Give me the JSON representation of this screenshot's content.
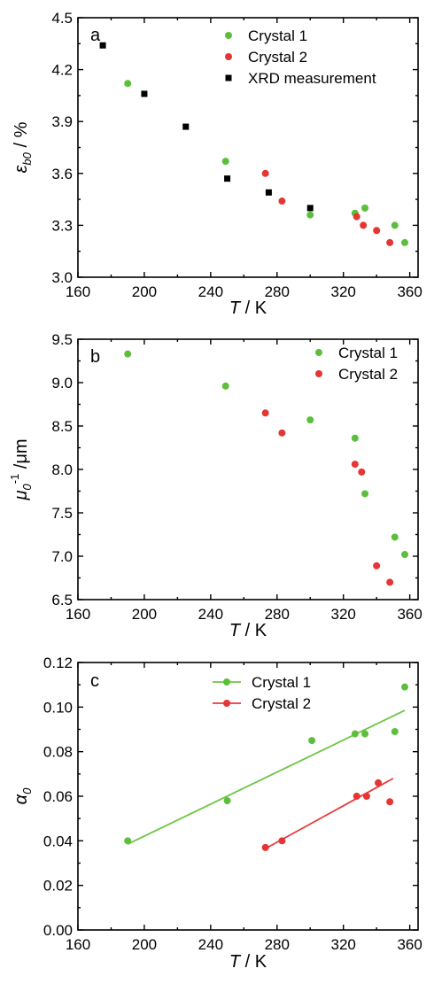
{
  "colors": {
    "crystal1": "#5cbf3c",
    "crystal2": "#e53535",
    "xrd": "#000000",
    "fit1": "#6cc644",
    "fit2": "#e83a3a"
  },
  "chart_data": [
    {
      "type": "scatter",
      "panel": "a",
      "xlabel_italic": "T",
      "xlabel_unit": " / K",
      "ylabel_symbol": "ε",
      "ylabel_sub": "b0",
      "ylabel_unit": " / %",
      "xlim": [
        160,
        365
      ],
      "ylim": [
        3.0,
        4.5
      ],
      "xticks": [
        "160",
        "200",
        "240",
        "280",
        "320",
        "360"
      ],
      "yticks": [
        "3.0",
        "3.3",
        "3.6",
        "3.9",
        "4.2",
        "4.5"
      ],
      "legend_position": "top-right",
      "series": [
        {
          "name": "Crystal 1",
          "marker": "circle",
          "color_key": "crystal1",
          "x": [
            190,
            249,
            300,
            327,
            333,
            351,
            357
          ],
          "y": [
            4.12,
            3.67,
            3.36,
            3.37,
            3.4,
            3.3,
            3.2
          ]
        },
        {
          "name": "Crystal 2",
          "marker": "circle",
          "color_key": "crystal2",
          "x": [
            273,
            283,
            328,
            332,
            340,
            348
          ],
          "y": [
            3.6,
            3.44,
            3.35,
            3.3,
            3.27,
            3.2
          ]
        },
        {
          "name": "XRD measurement",
          "marker": "square",
          "color_key": "xrd",
          "x": [
            175,
            200,
            225,
            250,
            275,
            300
          ],
          "y": [
            4.34,
            4.06,
            3.87,
            3.57,
            3.49,
            3.4
          ]
        }
      ]
    },
    {
      "type": "scatter",
      "panel": "b",
      "xlabel_italic": "T",
      "xlabel_unit": " / K",
      "ylabel_symbol": "μ",
      "ylabel_sub": "0",
      "ylabel_sup": "-1",
      "ylabel_unit": " /μm",
      "xlim": [
        160,
        365
      ],
      "ylim": [
        6.5,
        9.5
      ],
      "xticks": [
        "160",
        "200",
        "240",
        "280",
        "320",
        "360"
      ],
      "yticks": [
        "6.5",
        "7.0",
        "7.5",
        "8.0",
        "8.5",
        "9.0",
        "9.5"
      ],
      "legend_position": "top-right",
      "series": [
        {
          "name": "Crystal 1",
          "marker": "circle",
          "color_key": "crystal1",
          "x": [
            190,
            249,
            300,
            327,
            333,
            351,
            357
          ],
          "y": [
            9.33,
            8.96,
            8.57,
            8.36,
            7.72,
            7.22,
            7.02
          ]
        },
        {
          "name": "Crystal 2",
          "marker": "circle",
          "color_key": "crystal2",
          "x": [
            273,
            283,
            327,
            331,
            340,
            348
          ],
          "y": [
            8.65,
            8.42,
            8.06,
            7.97,
            6.89,
            6.7
          ]
        }
      ]
    },
    {
      "type": "scatter",
      "panel": "c",
      "xlabel_italic": "T",
      "xlabel_unit": " / K",
      "ylabel_symbol": "α",
      "ylabel_sub": "0",
      "xlim": [
        160,
        365
      ],
      "ylim": [
        0.0,
        0.12
      ],
      "xticks": [
        "160",
        "200",
        "240",
        "280",
        "320",
        "360"
      ],
      "yticks": [
        "0.00",
        "0.02",
        "0.04",
        "0.06",
        "0.08",
        "0.10",
        "0.12"
      ],
      "legend_position": "top-right",
      "series": [
        {
          "name": "Crystal 1",
          "marker": "circle",
          "color_key": "crystal1",
          "x": [
            190,
            250,
            301,
            327,
            333,
            351,
            357
          ],
          "y": [
            0.04,
            0.058,
            0.085,
            0.088,
            0.088,
            0.089,
            0.109
          ],
          "fit": {
            "x": [
              190,
              357
            ],
            "y": [
              0.0385,
              0.0985
            ],
            "color_key": "fit1"
          }
        },
        {
          "name": "Crystal 2",
          "marker": "circle",
          "color_key": "crystal2",
          "x": [
            273,
            283,
            328,
            334,
            341,
            348
          ],
          "y": [
            0.037,
            0.04,
            0.06,
            0.06,
            0.066,
            0.0575
          ],
          "fit": {
            "x": [
              273,
              350
            ],
            "y": [
              0.0365,
              0.068
            ],
            "color_key": "fit2"
          }
        }
      ]
    }
  ]
}
